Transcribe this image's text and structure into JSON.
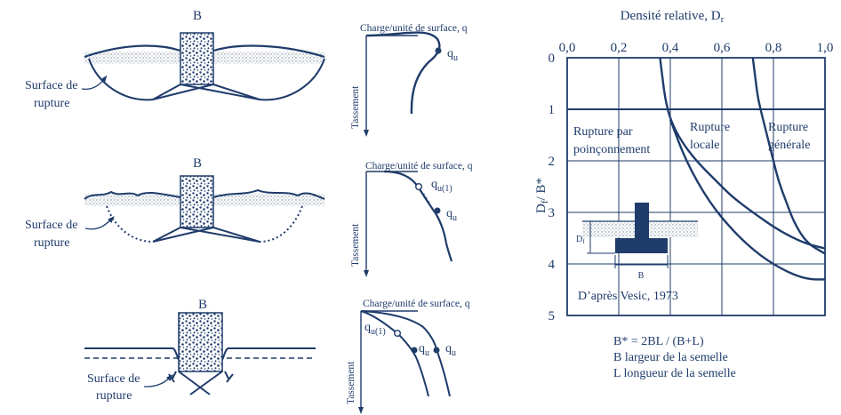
{
  "colors": {
    "ink": "#1f3c6b",
    "soil_dots": "#7a8796",
    "block_fill": "#ffffff",
    "footing_fill": "#1f3c6b"
  },
  "panels": [
    {
      "width_label": "B",
      "surface_label_1": "Surface de",
      "surface_label_2": "rupture"
    },
    {
      "width_label": "B",
      "surface_label_1": "Surface de",
      "surface_label_2": "rupture"
    },
    {
      "width_label": "B",
      "surface_label_1": "Surface de",
      "surface_label_2": "rupture"
    }
  ],
  "curves": [
    {
      "load_axis_label": "Charge/unité de surface, q",
      "settlement_axis_label": "Tassement",
      "qu_label_main": "q",
      "qu_label_sub": "u"
    },
    {
      "load_axis_label": "Charge/unité de surface, q",
      "settlement_axis_label": "Tassement",
      "qu1_label_main": "q",
      "qu1_label_sub": "u(1)",
      "qu_label_main": "q",
      "qu_label_sub": "u"
    },
    {
      "load_axis_label": "Charge/unité de surface, q",
      "settlement_axis_label": "Tassement",
      "qu1_label_main": "q",
      "qu1_label_sub": "u(1)",
      "qu_label_a_main": "q",
      "qu_label_a_sub": "u",
      "qu_label_b_main": "q",
      "qu_label_b_sub": "u"
    }
  ],
  "chart": {
    "top_axis_title_main": "Densité relative, D",
    "top_axis_title_sub": "r",
    "x_ticks": [
      "0,0",
      "0,2",
      "0,4",
      "0,6",
      "0,8",
      "1,0"
    ],
    "y_ticks": [
      "0",
      "1",
      "2",
      "3",
      "4",
      "5"
    ],
    "y_axis_label_main": "D",
    "y_axis_label_sub": "f",
    "y_axis_label_rest": "/ B*",
    "zone_punching_1": "Rupture par",
    "zone_punching_2": "poinçonnement",
    "zone_local_1": "Rupture",
    "zone_local_2": "locale",
    "zone_general_1": "Rupture",
    "zone_general_2": "générale",
    "source": "D’après Vesic, 1973",
    "inset_depth_main": "D",
    "inset_depth_sub": "f",
    "inset_width": "B",
    "formula": "B* = 2BL / (B+L)",
    "note_b": "B largeur de la semelle",
    "note_l": "L longueur de la semelle"
  },
  "chart_data": {
    "type": "line",
    "xlabel": "Densité relative, Dr",
    "ylabel": "Df / B*",
    "xlim": [
      0,
      1
    ],
    "ylim": [
      0,
      5
    ],
    "y_inverted": true,
    "grid": true,
    "series": [
      {
        "x": [
          0.36,
          0.37,
          0.38,
          0.4,
          0.44,
          0.5,
          0.58,
          0.64,
          0.72,
          0.82,
          0.92,
          1.0
        ],
        "y": [
          0.0,
          0.4,
          0.8,
          1.2,
          1.6,
          2.0,
          2.4,
          2.7,
          3.0,
          3.35,
          3.6,
          3.7
        ]
      },
      {
        "x": [
          0.72,
          0.73,
          0.74,
          0.76,
          0.78,
          0.8,
          0.82,
          0.85,
          0.88,
          0.93,
          1.0
        ],
        "y": [
          0.0,
          0.4,
          0.8,
          1.2,
          1.6,
          2.0,
          2.4,
          2.8,
          3.2,
          3.6,
          3.8
        ]
      },
      {
        "x": [
          0.4,
          0.46,
          0.55,
          0.65,
          0.75,
          0.85,
          0.93,
          1.0
        ],
        "y": [
          1.2,
          2.0,
          2.8,
          3.4,
          3.85,
          4.15,
          4.3,
          4.3
        ]
      }
    ]
  }
}
